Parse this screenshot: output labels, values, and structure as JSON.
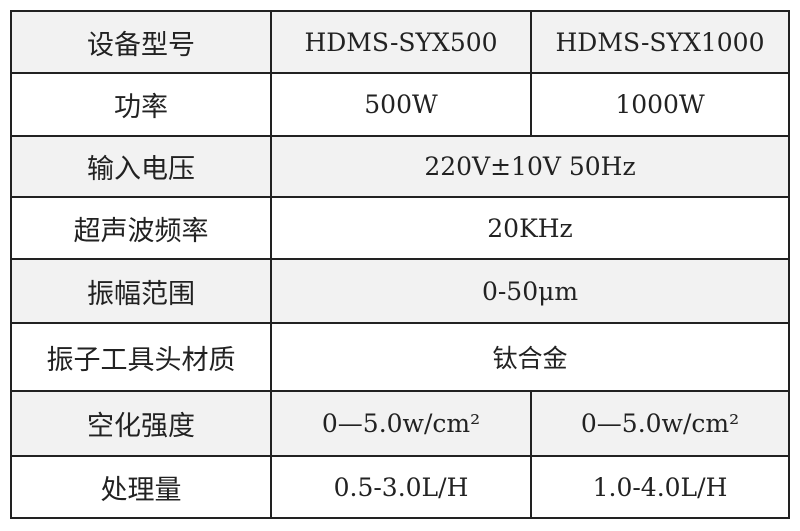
{
  "rows": [
    {
      "label": "设备型号",
      "cells": [
        "HDMS-SYX500",
        "HDMS-SYX1000"
      ]
    },
    {
      "label": "功率",
      "cells": [
        "500W",
        "1000W"
      ]
    },
    {
      "label": "输入电压",
      "cells": [
        "220V±10V 50Hz"
      ]
    },
    {
      "label": "超声波频率",
      "cells": [
        "20KHz"
      ]
    },
    {
      "label": "振幅范围",
      "cells": [
        "0-50μm"
      ]
    },
    {
      "label": "振子工具头材质",
      "cells": [
        "钛合金"
      ]
    },
    {
      "label": "空化强度",
      "cells": [
        "0—5.0w/cm²",
        "0—5.0w/cm²"
      ]
    },
    {
      "label": "处理量",
      "cells": [
        "0.5-3.0L/H",
        "1.0-4.0L/H"
      ]
    }
  ]
}
